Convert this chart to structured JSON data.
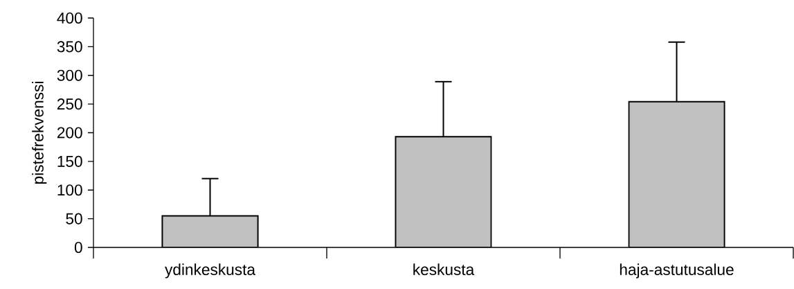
{
  "chart_data": {
    "type": "bar",
    "ylabel": "pistefrekvenssi",
    "categories": [
      "ydinkeskusta",
      "keskusta",
      "haja-astutusalue"
    ],
    "values": [
      55,
      193,
      254
    ],
    "errors": [
      [
        55,
        120
      ],
      [
        193,
        289
      ],
      [
        254,
        358
      ]
    ],
    "color": "#c0c0c0",
    "ylim": [
      0,
      400
    ],
    "yticks": [
      0,
      50,
      100,
      150,
      200,
      250,
      300,
      350,
      400
    ]
  }
}
